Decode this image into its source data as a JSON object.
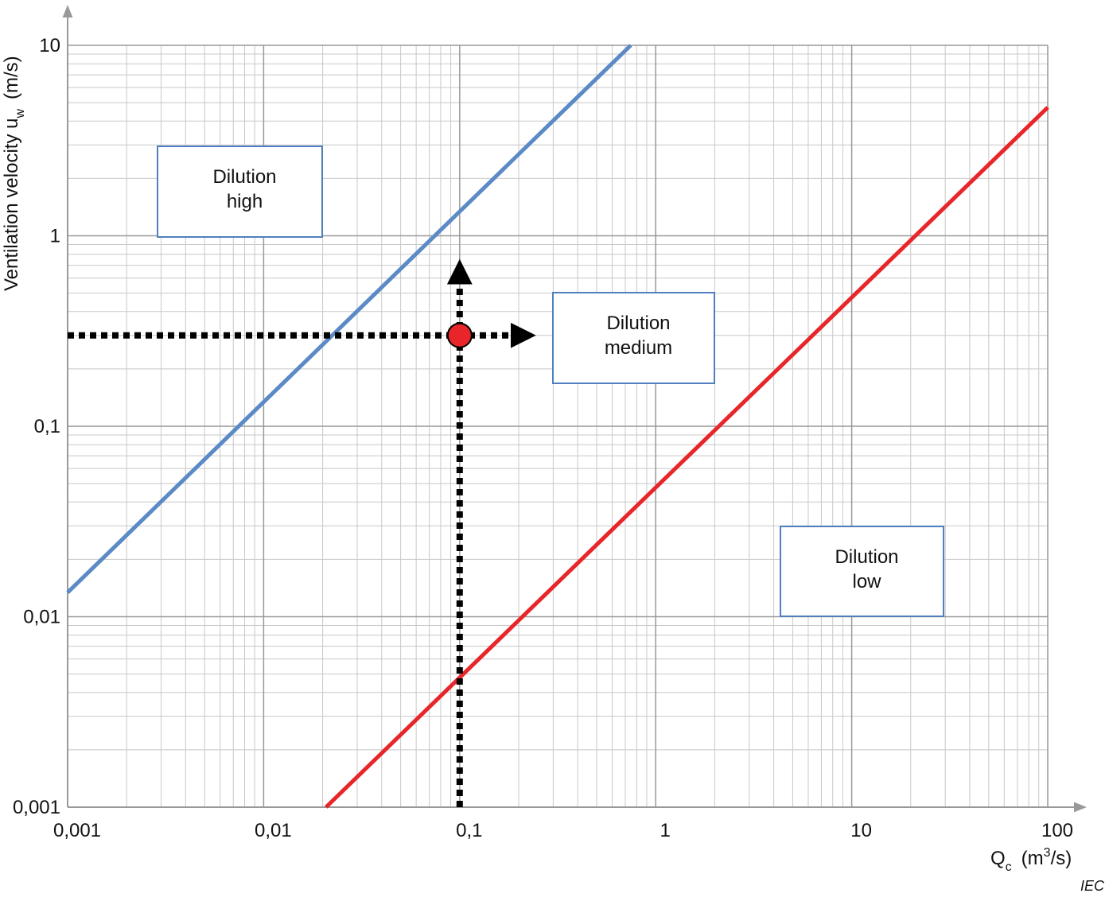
{
  "chart_data": {
    "type": "line",
    "log_x": true,
    "log_y": true,
    "grid": true,
    "x_label": {
      "text": "Q",
      "sub": "c",
      "unit_pre": "(m",
      "sup": "3",
      "unit_post": "/s)"
    },
    "y_label": {
      "text": "Ventilation velocity u",
      "sub": "w",
      "unit": "(m/s)"
    },
    "xlim": [
      0.001,
      100
    ],
    "ylim": [
      0.001,
      10
    ],
    "xticks": [
      {
        "value": 0.001,
        "label": "0,001"
      },
      {
        "value": 0.01,
        "label": "0,01"
      },
      {
        "value": 0.1,
        "label": "0,1"
      },
      1,
      10,
      100
    ],
    "yticks": [
      {
        "value": 0.001,
        "label": "0,001"
      },
      {
        "value": 0.01,
        "label": "0,01"
      },
      {
        "value": 0.1,
        "label": "0,1"
      },
      1,
      10
    ],
    "series": [
      {
        "color": "#5b8ac6",
        "x": [
          0.001,
          0.746
        ],
        "values": [
          0.0134,
          10
        ]
      },
      {
        "color": "#e8262a",
        "x": [
          0.0208,
          100
        ],
        "values": [
          0.001,
          4.72
        ]
      }
    ],
    "marker": {
      "x": 0.1,
      "y": 0.3,
      "color": "#e8262a"
    },
    "annotations": [
      [
        "Dilution",
        "high"
      ],
      [
        "Dilution",
        "medium"
      ],
      [
        "Dilution",
        "low"
      ]
    ],
    "source": "IEC"
  }
}
